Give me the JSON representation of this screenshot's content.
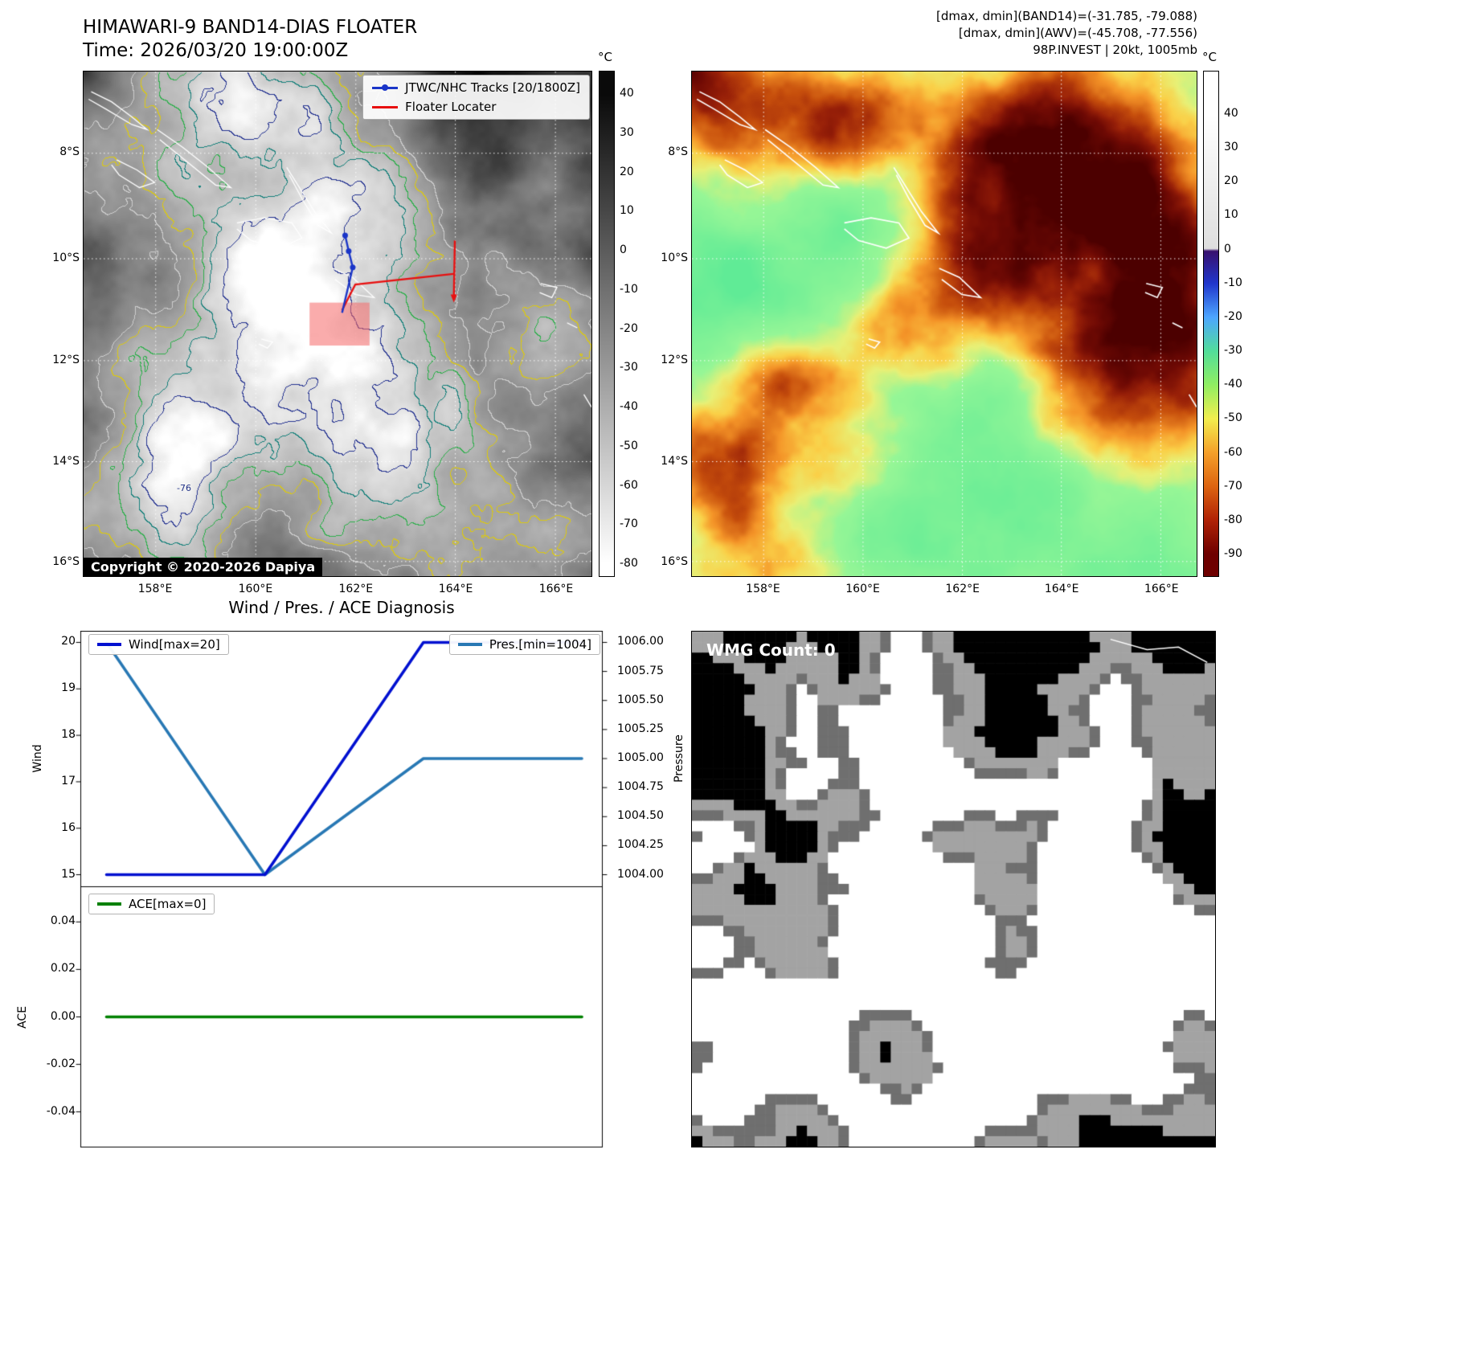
{
  "panel_band14": {
    "title": "HIMAWARI-9 BAND14-DIAS FLOATER",
    "subtitle": "Time: 2026/03/20 19:00:00Z",
    "legend": {
      "track_label": "JTWC/NHC Tracks [20/1800Z]",
      "track_color": "#1a35c8",
      "floater_label": "Floater Locater",
      "floater_color": "#e81010"
    },
    "copyright": "Copyright © 2020-2026 Dapiya",
    "min_annotation": "-76",
    "colorbar": {
      "unit": "°C",
      "ticks": [
        40,
        30,
        20,
        10,
        0,
        -10,
        -20,
        -30,
        -40,
        -50,
        -60,
        -70,
        -80
      ]
    },
    "lat_ticks": [
      "8°S",
      "10°S",
      "12°S",
      "14°S",
      "16°S"
    ],
    "lon_ticks": [
      "158°E",
      "160°E",
      "162°E",
      "164°E",
      "166°E"
    ]
  },
  "panel_awv": {
    "header_lines": [
      "[dmax, dmin](BAND14)=(-31.785, -79.088)",
      "[dmax, dmin](AWV)=(-45.708, -77.556)",
      "98P.INVEST | 20kt, 1005mb"
    ],
    "colorbar": {
      "unit": "°C",
      "ticks": [
        40,
        30,
        20,
        10,
        0,
        -10,
        -20,
        -30,
        -40,
        -50,
        -60,
        -70,
        -80,
        -90
      ]
    },
    "lat_ticks": [
      "8°S",
      "10°S",
      "12°S",
      "14°S",
      "16°S"
    ],
    "lon_ticks": [
      "158°E",
      "160°E",
      "162°E",
      "164°E",
      "166°E"
    ]
  },
  "panel_wmg": {
    "label": "WMG Count: 0"
  },
  "chart_data": [
    {
      "type": "line",
      "title": "Wind / Pres. / ACE Diagnosis",
      "subplot": "wind_pressure",
      "x": [
        0,
        1,
        2,
        3
      ],
      "series": [
        {
          "name": "Wind[max=20]",
          "axis": "left",
          "color": "#0010d0",
          "values": [
            15,
            15,
            20,
            20
          ]
        },
        {
          "name": "Pres.[min=1004]",
          "axis": "right",
          "color": "#2878b4",
          "values": [
            1006,
            1004,
            1005,
            1005
          ]
        }
      ],
      "left_axis": {
        "label": "Wind",
        "ticks": [
          "20",
          "19",
          "18",
          "17",
          "16",
          "15"
        ],
        "range": [
          14.75,
          20.25
        ]
      },
      "right_axis": {
        "label": "Pressure",
        "ticks": [
          "1006.00",
          "1005.75",
          "1005.50",
          "1005.25",
          "1005.00",
          "1004.75",
          "1004.50",
          "1004.25",
          "1004.00"
        ],
        "range": [
          1003.9,
          1006.1
        ]
      },
      "grid": false,
      "legend_position": "upper-left and upper-right"
    },
    {
      "type": "line",
      "subplot": "ace",
      "x": [
        0,
        3
      ],
      "series": [
        {
          "name": "ACE[max=0]",
          "axis": "left",
          "color": "#008000",
          "values": [
            0,
            0
          ]
        }
      ],
      "left_axis": {
        "label": "ACE",
        "ticks": [
          "0.04",
          "0.02",
          "0.00",
          "-0.02",
          "-0.04"
        ],
        "range": [
          -0.055,
          0.055
        ]
      },
      "grid": false,
      "legend_position": "upper-left"
    }
  ]
}
